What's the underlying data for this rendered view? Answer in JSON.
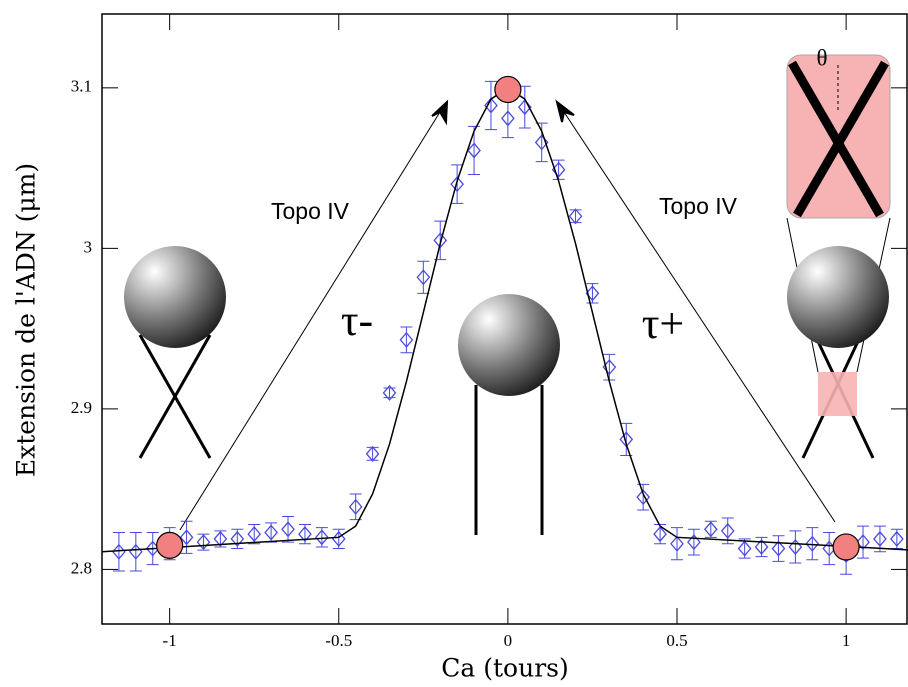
{
  "chart_data": {
    "type": "scatter",
    "x_label": "Ca (tours)",
    "y_label": "Extension de l'ADN (μm)",
    "xlim": [
      -1.2,
      1.18
    ],
    "ylim": [
      2.766,
      3.146
    ],
    "xticks": [
      -1,
      -0.5,
      0,
      0.5,
      1
    ],
    "yticks": [
      2.8,
      2.9,
      3,
      3.1
    ],
    "annotations": [
      "Topo IV",
      "Topo IV",
      "τ-",
      "τ+",
      "θ"
    ],
    "series": [
      {
        "type": "scatter",
        "color": "#4a4adf",
        "x": [
          -1.15,
          -1.1,
          -1.05,
          -1,
          -0.95,
          -0.9,
          -0.85,
          -0.8,
          -0.75,
          -0.7,
          -0.65,
          -0.6,
          -0.55,
          -0.5,
          -0.45,
          -0.4,
          -0.35,
          -0.3,
          -0.25,
          -0.2,
          -0.15,
          -0.1,
          -0.05,
          0,
          0.05,
          0.1,
          0.15,
          0.2,
          0.25,
          0.3,
          0.35,
          0.4,
          0.45,
          0.5,
          0.55,
          0.6,
          0.65,
          0.7,
          0.75,
          0.8,
          0.85,
          0.9,
          0.95,
          1,
          1.05,
          1.1,
          1.15
        ],
        "values": [
          2.811,
          2.811,
          2.813,
          2.816,
          2.82,
          2.817,
          2.819,
          2.819,
          2.822,
          2.823,
          2.825,
          2.822,
          2.82,
          2.819,
          2.839,
          2.872,
          2.91,
          2.943,
          2.982,
          3.005,
          3.04,
          3.061,
          3.089,
          3.081,
          3.088,
          3.066,
          3.049,
          3.02,
          2.972,
          2.926,
          2.881,
          2.845,
          2.822,
          2.816,
          2.817,
          2.825,
          2.824,
          2.813,
          2.814,
          2.813,
          2.814,
          2.816,
          2.813,
          2.809,
          2.817,
          2.819,
          2.819
        ],
        "errors": [
          0.012,
          0.012,
          0.01,
          0.01,
          0.01,
          0.005,
          0.005,
          0.006,
          0.006,
          0.006,
          0.008,
          0.006,
          0.006,
          0.006,
          0.008,
          0.004,
          0.003,
          0.008,
          0.01,
          0.012,
          0.012,
          0.015,
          0.015,
          0.012,
          0.013,
          0.012,
          0.006,
          0.004,
          0.006,
          0.008,
          0.01,
          0.008,
          0.006,
          0.01,
          0.008,
          0.005,
          0.008,
          0.006,
          0.006,
          0.008,
          0.01,
          0.01,
          0.01,
          0.012,
          0.01,
          0.008,
          0.006
        ]
      },
      {
        "type": "line",
        "color": "#000000",
        "x": [
          -1.2,
          -0.5,
          -0.45,
          -0.4,
          -0.35,
          -0.3,
          -0.25,
          -0.2,
          -0.15,
          -0.1,
          -0.05,
          0,
          0.05,
          0.1,
          0.15,
          0.2,
          0.25,
          0.3,
          0.35,
          0.4,
          0.45,
          0.5,
          1.2
        ],
        "values": [
          2.811,
          2.82,
          2.827,
          2.847,
          2.878,
          2.917,
          2.96,
          3.003,
          3.042,
          3.073,
          3.093,
          3.1,
          3.093,
          3.073,
          3.042,
          3.003,
          2.96,
          2.917,
          2.878,
          2.847,
          2.827,
          2.82,
          2.812
        ]
      },
      {
        "type": "marker",
        "color": "#f28080",
        "x": [
          -1,
          0,
          1
        ],
        "values": [
          2.815,
          3.099,
          2.814
        ]
      }
    ]
  }
}
